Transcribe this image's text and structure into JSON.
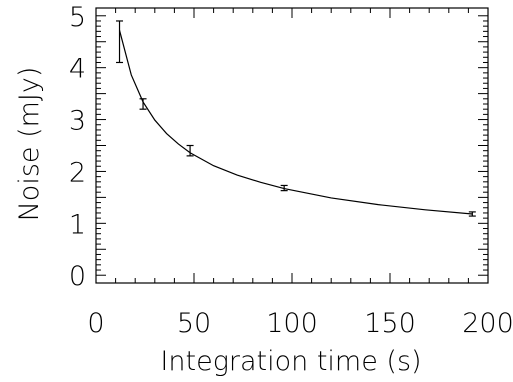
{
  "chart_data": {
    "type": "line",
    "title": "",
    "xlabel": "Integration time (s)",
    "ylabel": "Noise (mJy)",
    "xlim": [
      0,
      200
    ],
    "ylim": [
      -0.15,
      5.15
    ],
    "xticks": [
      0,
      50,
      100,
      150,
      200
    ],
    "xtick_labels": [
      "0",
      "50",
      "100",
      "150",
      "200"
    ],
    "yticks": [
      0,
      1,
      2,
      3,
      4,
      5
    ],
    "ytick_labels": [
      "0",
      "1",
      "2",
      "3",
      "4",
      "5"
    ],
    "grid": false,
    "series": [
      {
        "kind": "curve",
        "x": [
          12,
          18,
          24,
          30,
          36,
          42,
          48,
          60,
          72,
          84,
          96,
          120,
          144,
          168,
          192
        ],
        "y": [
          4.72,
          3.86,
          3.34,
          2.99,
          2.73,
          2.53,
          2.36,
          2.11,
          1.93,
          1.79,
          1.67,
          1.49,
          1.36,
          1.26,
          1.18
        ]
      },
      {
        "kind": "errorbar",
        "x": [
          12,
          24,
          48,
          96,
          192
        ],
        "y": [
          4.5,
          3.3,
          2.4,
          1.68,
          1.18
        ],
        "err": [
          0.4,
          0.1,
          0.1,
          0.05,
          0.04
        ]
      }
    ]
  }
}
